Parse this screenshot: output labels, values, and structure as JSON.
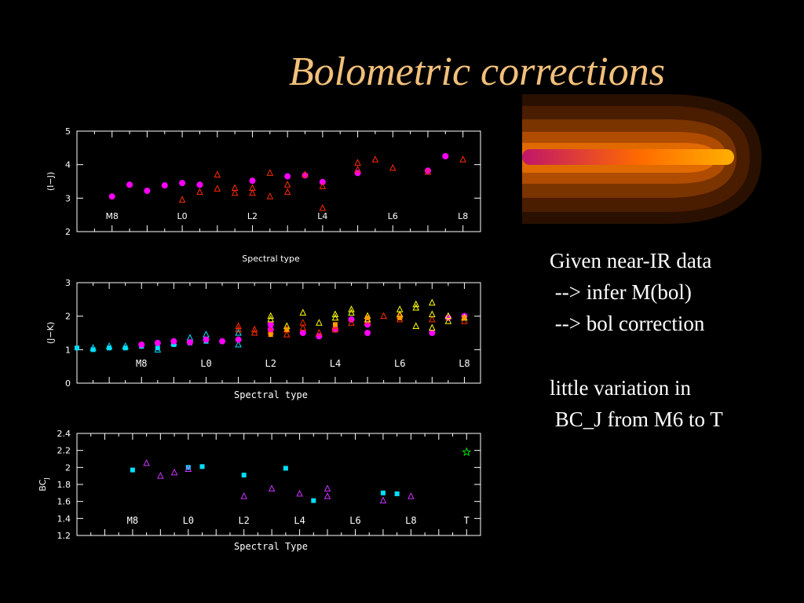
{
  "slide": {
    "title": "Bolometric corrections",
    "text_lines": [
      "Given near-IR data",
      " --> infer M(bol)",
      " --> bol correction",
      "",
      "little variation in",
      " BC_J from M6 to T"
    ]
  },
  "colors": {
    "title": "#f2c07a",
    "magenta": "#ff00ff",
    "red": "#ff2a00",
    "yellow": "#ffff00",
    "orange": "#ff9900",
    "cyan": "#00e0ff",
    "purple": "#cc33ff",
    "green": "#00dd00",
    "axis": "#ffffff"
  },
  "chart_data": [
    {
      "type": "scatter",
      "id": "top",
      "xlabel": "Spectral type",
      "ylabel": "(I−J)",
      "xlim": [
        -1,
        10.5
      ],
      "ylim": [
        2,
        5
      ],
      "yticks": [
        "2",
        "3",
        "4",
        "5"
      ],
      "xtick_labels": [
        {
          "x": 0,
          "label": "M8"
        },
        {
          "x": 2,
          "label": "L0"
        },
        {
          "x": 4,
          "label": "L2"
        },
        {
          "x": 6,
          "label": "L4"
        },
        {
          "x": 8,
          "label": "L6"
        },
        {
          "x": 10,
          "label": "L8"
        }
      ],
      "series": [
        {
          "marker": "circle",
          "color": "magenta",
          "points": [
            [
              0,
              3.05
            ],
            [
              0.5,
              3.4
            ],
            [
              1,
              3.22
            ],
            [
              1.5,
              3.38
            ],
            [
              2,
              3.45
            ],
            [
              2.5,
              3.4
            ],
            [
              4,
              3.52
            ],
            [
              5,
              3.65
            ],
            [
              5.5,
              3.68
            ],
            [
              6,
              3.48
            ],
            [
              7,
              3.75
            ],
            [
              9,
              3.82
            ],
            [
              9.5,
              4.25
            ]
          ]
        },
        {
          "marker": "triangle",
          "color": "red",
          "points": [
            [
              2,
              2.95
            ],
            [
              2.5,
              3.18
            ],
            [
              3,
              3.7
            ],
            [
              3,
              3.28
            ],
            [
              3.5,
              3.15
            ],
            [
              3.5,
              3.3
            ],
            [
              4,
              3.15
            ],
            [
              4,
              3.3
            ],
            [
              4.5,
              3.05
            ],
            [
              4.5,
              3.75
            ],
            [
              5,
              3.18
            ],
            [
              5,
              3.4
            ],
            [
              5.5,
              3.7
            ],
            [
              6,
              3.35
            ],
            [
              6,
              2.7
            ],
            [
              7,
              4.05
            ],
            [
              7,
              3.85
            ],
            [
              7.5,
              4.15
            ],
            [
              8,
              3.9
            ],
            [
              9,
              3.78
            ],
            [
              10,
              4.15
            ]
          ]
        }
      ]
    },
    {
      "type": "scatter",
      "id": "middle",
      "xlabel": "Spectral type",
      "ylabel": "(J−K)",
      "xlim": [
        -2,
        10.5
      ],
      "ylim": [
        0,
        3
      ],
      "yticks": [
        "0",
        "1",
        "2",
        "3"
      ],
      "xtick_labels": [
        {
          "x": 0,
          "label": "M8"
        },
        {
          "x": 2,
          "label": "L0"
        },
        {
          "x": 4,
          "label": "L2"
        },
        {
          "x": 6,
          "label": "L4"
        },
        {
          "x": 8,
          "label": "L6"
        },
        {
          "x": 10,
          "label": "L8"
        }
      ],
      "series": [
        {
          "marker": "square",
          "color": "cyan",
          "points": [
            [
              -2,
              1.05
            ],
            [
              -1.5,
              1.0
            ],
            [
              -1,
              1.05
            ],
            [
              -0.5,
              1.05
            ],
            [
              0,
              1.1
            ],
            [
              0.5,
              1.05
            ],
            [
              1,
              1.15
            ],
            [
              1.5,
              1.2
            ],
            [
              2,
              1.25
            ]
          ]
        },
        {
          "marker": "triangle",
          "color": "cyan",
          "points": [
            [
              -1.5,
              1.05
            ],
            [
              -1,
              1.1
            ],
            [
              -0.5,
              1.1
            ],
            [
              0.5,
              1.0
            ],
            [
              1,
              1.2
            ],
            [
              1.5,
              1.35
            ],
            [
              2,
              1.45
            ],
            [
              3,
              1.15
            ],
            [
              3,
              1.5
            ]
          ]
        },
        {
          "marker": "circle",
          "color": "magenta",
          "points": [
            [
              0,
              1.15
            ],
            [
              0.5,
              1.2
            ],
            [
              1,
              1.25
            ],
            [
              1.5,
              1.22
            ],
            [
              2,
              1.3
            ],
            [
              2.5,
              1.25
            ],
            [
              3,
              1.3
            ],
            [
              4,
              1.6
            ],
            [
              4,
              1.75
            ],
            [
              5,
              1.5
            ],
            [
              5.5,
              1.4
            ],
            [
              6,
              1.6
            ],
            [
              6.5,
              1.9
            ],
            [
              7,
              1.5
            ],
            [
              7,
              1.75
            ],
            [
              9,
              1.5
            ],
            [
              9.5,
              1.95
            ],
            [
              10,
              2.0
            ]
          ]
        },
        {
          "marker": "triangle",
          "color": "red",
          "points": [
            [
              3,
              1.6
            ],
            [
              3,
              1.7
            ],
            [
              3.5,
              1.5
            ],
            [
              3.5,
              1.6
            ],
            [
              4,
              1.55
            ],
            [
              4.5,
              1.45
            ],
            [
              4.5,
              1.6
            ],
            [
              5,
              1.65
            ],
            [
              5,
              1.8
            ],
            [
              5.5,
              1.5
            ],
            [
              6,
              1.7
            ],
            [
              6,
              1.6
            ],
            [
              6.5,
              1.8
            ],
            [
              7,
              1.85
            ],
            [
              7.5,
              2.0
            ],
            [
              8,
              1.9
            ],
            [
              8,
              2.0
            ],
            [
              9,
              1.9
            ],
            [
              10,
              1.85
            ]
          ]
        },
        {
          "marker": "triangle",
          "color": "yellow",
          "points": [
            [
              4,
              1.9
            ],
            [
              4,
              2.0
            ],
            [
              4.5,
              1.7
            ],
            [
              5,
              2.1
            ],
            [
              5.5,
              1.8
            ],
            [
              6,
              1.95
            ],
            [
              6,
              2.05
            ],
            [
              6.5,
              2.2
            ],
            [
              6.5,
              2.1
            ],
            [
              7,
              2.0
            ],
            [
              7,
              1.9
            ],
            [
              8,
              2.2
            ],
            [
              8,
              2.05
            ],
            [
              8.5,
              2.35
            ],
            [
              8.5,
              2.25
            ],
            [
              9,
              2.4
            ],
            [
              9,
              2.05
            ],
            [
              9.5,
              1.85
            ],
            [
              9.5,
              2.0
            ],
            [
              8.5,
              1.7
            ],
            [
              9,
              1.65
            ],
            [
              10,
              1.95
            ]
          ]
        },
        {
          "marker": "square",
          "color": "orange",
          "points": [
            [
              4,
              1.45
            ],
            [
              4.5,
              1.6
            ],
            [
              6,
              1.75
            ],
            [
              7,
              1.95
            ],
            [
              8,
              1.95
            ],
            [
              10,
              1.95
            ]
          ]
        }
      ]
    },
    {
      "type": "scatter",
      "id": "bottom",
      "xlabel": "Spectral Type",
      "ylabel": "BC",
      "ylabel_sub": "J",
      "xlim": [
        -2,
        12.5
      ],
      "ylim": [
        1.2,
        2.4
      ],
      "yticks": [
        "1.2",
        "1.4",
        "1.6",
        "1.8",
        "2",
        "2.2",
        "2.4"
      ],
      "xtick_labels": [
        {
          "x": 0,
          "label": "M8"
        },
        {
          "x": 2,
          "label": "L0"
        },
        {
          "x": 4,
          "label": "L2"
        },
        {
          "x": 6,
          "label": "L4"
        },
        {
          "x": 8,
          "label": "L6"
        },
        {
          "x": 10,
          "label": "L8"
        },
        {
          "x": 12,
          "label": "T"
        }
      ],
      "series": [
        {
          "marker": "square",
          "color": "cyan",
          "points": [
            [
              0,
              1.97
            ],
            [
              2,
              2.0
            ],
            [
              2.5,
              2.01
            ],
            [
              4,
              1.91
            ],
            [
              5.5,
              1.99
            ],
            [
              6.5,
              1.61
            ],
            [
              9,
              1.7
            ],
            [
              9.5,
              1.69
            ]
          ]
        },
        {
          "marker": "triangle",
          "color": "purple",
          "points": [
            [
              0.5,
              2.05
            ],
            [
              1,
              1.9
            ],
            [
              1.5,
              1.94
            ],
            [
              2,
              1.98
            ],
            [
              4,
              1.66
            ],
            [
              5,
              1.75
            ],
            [
              6,
              1.69
            ],
            [
              7,
              1.75
            ],
            [
              7,
              1.66
            ],
            [
              9,
              1.61
            ],
            [
              10,
              1.66
            ]
          ]
        },
        {
          "marker": "star",
          "color": "green",
          "points": [
            [
              12,
              2.18
            ]
          ]
        }
      ]
    }
  ]
}
